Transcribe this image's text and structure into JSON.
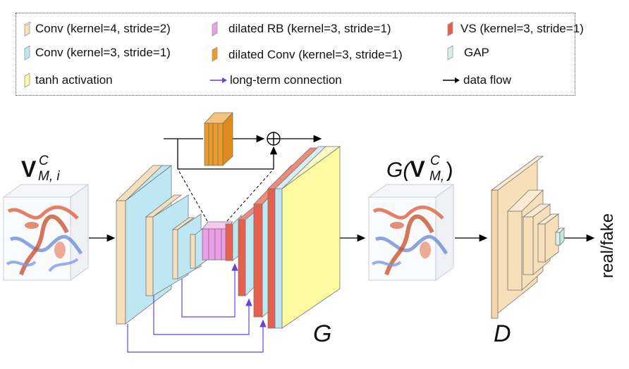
{
  "legend": {
    "items": [
      {
        "label": "Conv (kernel=4, stride=2)",
        "color": "#f7dfb9",
        "icon": "swatch-block"
      },
      {
        "label": "dilated RB (kernel=3, stride=1)",
        "color": "#ec9ee8",
        "icon": "swatch-block"
      },
      {
        "label": "VS (kernel=3, stride=1)",
        "color": "#e8604d",
        "icon": "swatch-block"
      },
      {
        "label": "Conv (kernel=3, stride=1)",
        "color": "#bfe7f3",
        "icon": "swatch-block"
      },
      {
        "label": "dilated Conv (kernel=3, stride=1)",
        "color": "#ee9a26",
        "icon": "swatch-block"
      },
      {
        "label": "GAP",
        "color": "#d6f2e6",
        "icon": "swatch-block"
      },
      {
        "label": "tanh activation",
        "color": "#fbfaa0",
        "icon": "swatch-block"
      },
      {
        "label": "long-term connection",
        "color": "#6a3fe0",
        "icon": "arrow-purple"
      },
      {
        "label": "data flow",
        "color": "#000000",
        "icon": "arrow-black"
      }
    ]
  },
  "labels": {
    "input_V": "V",
    "input_sup": "C",
    "input_sub": "M, i",
    "output_G_prefix": "G(",
    "output_V": "V",
    "output_sup": "C",
    "output_sub": "M, i",
    "output_suffix": ")",
    "generator": "G",
    "discriminator": "D",
    "result": "real/fake"
  },
  "colors": {
    "conv4": "#f7dfb9",
    "conv3": "#bfe7f3",
    "tanh": "#fbfaa0",
    "dilated_rb": "#ec9ee8",
    "dilated_conv": "#ee9a26",
    "vs": "#e8604d",
    "gap": "#d6f2e6",
    "long_term": "#6a3fe0"
  }
}
